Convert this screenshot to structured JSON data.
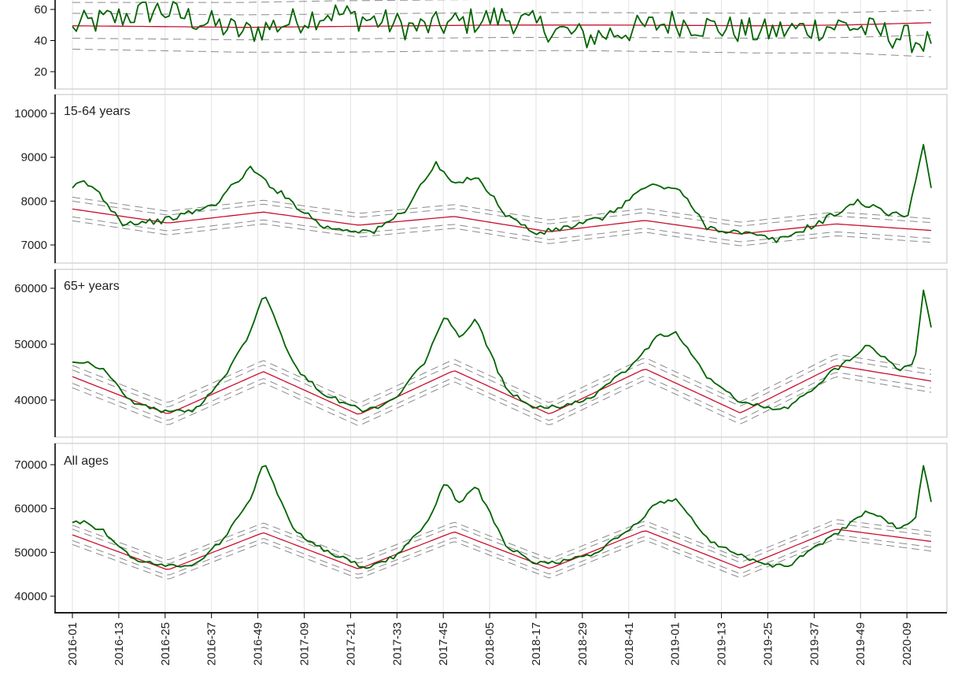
{
  "chart_data": [
    {
      "type": "line",
      "panel_label": "",
      "yticks": [
        20,
        40,
        60
      ],
      "ylim": [
        10,
        70
      ],
      "baseline": [
        49.5,
        49.0,
        48.5,
        49.0,
        49.5,
        50.0,
        50.0,
        49.8,
        49.5,
        50.0,
        51.5
      ],
      "band_inner": [
        8,
        8,
        8,
        8,
        8,
        8,
        8,
        8,
        8,
        8,
        8
      ],
      "band_outer": [
        15,
        15.5,
        16,
        16.5,
        16.5,
        16.5,
        16.5,
        17,
        17.5,
        18,
        22
      ],
      "observed_key": [
        49,
        60,
        45,
        58,
        48,
        55,
        42,
        52,
        45,
        50,
        38
      ],
      "noise_amplitude": 9
    },
    {
      "type": "line",
      "panel_label": "15-64 years",
      "yticks": [
        7000,
        8000,
        9000,
        10000
      ],
      "ylim": [
        6600,
        10400
      ],
      "baseline": [
        7820,
        7500,
        7750,
        7450,
        7650,
        7300,
        7560,
        7250,
        7480,
        7330
      ],
      "band_inner": [
        180,
        180,
        180,
        180,
        180,
        180,
        180,
        180,
        180,
        180
      ],
      "band_outer": [
        270,
        270,
        270,
        270,
        270,
        270,
        270,
        270,
        270,
        270
      ],
      "observed": [
        [
          2016.0,
          8300
        ],
        [
          2016.05,
          8450
        ],
        [
          2016.12,
          8250
        ],
        [
          2016.25,
          7500
        ],
        [
          2016.45,
          7550
        ],
        [
          2016.7,
          7900
        ],
        [
          2016.88,
          8750
        ],
        [
          2017.0,
          8300
        ],
        [
          2017.25,
          7400
        ],
        [
          2017.5,
          7300
        ],
        [
          2017.65,
          7800
        ],
        [
          2017.8,
          8850
        ],
        [
          2017.9,
          8350
        ],
        [
          2018.0,
          8600
        ],
        [
          2018.15,
          7700
        ],
        [
          2018.3,
          7250
        ],
        [
          2018.5,
          7450
        ],
        [
          2018.65,
          7650
        ],
        [
          2018.85,
          8350
        ],
        [
          2019.0,
          8300
        ],
        [
          2019.15,
          7400
        ],
        [
          2019.35,
          7250
        ],
        [
          2019.5,
          7100
        ],
        [
          2019.7,
          7500
        ],
        [
          2019.9,
          8000
        ],
        [
          2020.05,
          7700
        ],
        [
          2020.15,
          7700
        ],
        [
          2020.22,
          9350
        ],
        [
          2020.26,
          8300
        ]
      ],
      "noise_amplitude": 70
    },
    {
      "type": "line",
      "panel_label": "65+ years",
      "yticks": [
        40000,
        50000,
        60000
      ],
      "ylim": [
        33000,
        61500
      ],
      "baseline": [
        44200,
        37500,
        45100,
        37400,
        45300,
        37500,
        45600,
        37700,
        46200,
        43400
      ],
      "band_inner": [
        1200,
        1200,
        1200,
        1200,
        1200,
        1200,
        1200,
        1200,
        1200,
        1200
      ],
      "band_outer": [
        2000,
        2000,
        2000,
        2000,
        2000,
        2000,
        2000,
        2000,
        2000,
        2000
      ],
      "observed": [
        [
          2016.0,
          46800
        ],
        [
          2016.05,
          47000
        ],
        [
          2016.15,
          45500
        ],
        [
          2016.3,
          39500
        ],
        [
          2016.45,
          38000
        ],
        [
          2016.6,
          38000
        ],
        [
          2016.75,
          44000
        ],
        [
          2016.88,
          52000
        ],
        [
          2016.95,
          59500
        ],
        [
          2017.1,
          46000
        ],
        [
          2017.25,
          41000
        ],
        [
          2017.45,
          38000
        ],
        [
          2017.6,
          40000
        ],
        [
          2017.75,
          47000
        ],
        [
          2017.85,
          55000
        ],
        [
          2017.92,
          51000
        ],
        [
          2018.0,
          54500
        ],
        [
          2018.15,
          42000
        ],
        [
          2018.3,
          38500
        ],
        [
          2018.45,
          39000
        ],
        [
          2018.6,
          41000
        ],
        [
          2018.8,
          47000
        ],
        [
          2018.9,
          51500
        ],
        [
          2019.0,
          52000
        ],
        [
          2019.15,
          44000
        ],
        [
          2019.3,
          40000
        ],
        [
          2019.45,
          38500
        ],
        [
          2019.55,
          38500
        ],
        [
          2019.75,
          44500
        ],
        [
          2019.95,
          50000
        ],
        [
          2020.1,
          45500
        ],
        [
          2020.18,
          47000
        ],
        [
          2020.22,
          60000
        ],
        [
          2020.26,
          53000
        ]
      ],
      "noise_amplitude": 400
    },
    {
      "type": "line",
      "panel_label": "All ages",
      "yticks": [
        40000,
        50000,
        60000,
        70000
      ],
      "ylim": [
        35000,
        72000
      ],
      "baseline": [
        54000,
        46000,
        54500,
        46200,
        54700,
        46300,
        55000,
        46400,
        55300,
        52500
      ],
      "band_inner": [
        1300,
        1300,
        1300,
        1300,
        1300,
        1300,
        1300,
        1300,
        1300,
        1300
      ],
      "band_outer": [
        2200,
        2200,
        2200,
        2200,
        2200,
        2200,
        2200,
        2200,
        2200,
        2200
      ],
      "observed": [
        [
          2016.0,
          56800
        ],
        [
          2016.05,
          57000
        ],
        [
          2016.15,
          55000
        ],
        [
          2016.3,
          48500
        ],
        [
          2016.45,
          47000
        ],
        [
          2016.6,
          47000
        ],
        [
          2016.75,
          53000
        ],
        [
          2016.88,
          62000
        ],
        [
          2016.95,
          70500
        ],
        [
          2017.1,
          55000
        ],
        [
          2017.25,
          50500
        ],
        [
          2017.45,
          46500
        ],
        [
          2017.6,
          49000
        ],
        [
          2017.75,
          56000
        ],
        [
          2017.85,
          66000
        ],
        [
          2017.92,
          61000
        ],
        [
          2018.0,
          65500
        ],
        [
          2018.15,
          51500
        ],
        [
          2018.3,
          47500
        ],
        [
          2018.45,
          48000
        ],
        [
          2018.6,
          50000
        ],
        [
          2018.8,
          56500
        ],
        [
          2018.9,
          61500
        ],
        [
          2019.0,
          62000
        ],
        [
          2019.15,
          53000
        ],
        [
          2019.3,
          49500
        ],
        [
          2019.45,
          47000
        ],
        [
          2019.55,
          47000
        ],
        [
          2019.75,
          53000
        ],
        [
          2019.95,
          59500
        ],
        [
          2020.1,
          55500
        ],
        [
          2020.18,
          57000
        ],
        [
          2020.22,
          70500
        ],
        [
          2020.26,
          61500
        ]
      ],
      "noise_amplitude": 450
    }
  ],
  "xticks": [
    "2016-01",
    "2016-13",
    "2016-25",
    "2016-37",
    "2016-49",
    "2017-09",
    "2017-21",
    "2017-33",
    "2017-45",
    "2018-05",
    "2018-17",
    "2018-29",
    "2018-41",
    "2019-01",
    "2019-13",
    "2019-25",
    "2019-37",
    "2019-49",
    "2020-09"
  ],
  "colors": {
    "observed": "#006400",
    "baseline": "#c8102e",
    "band": "#8a8a8a",
    "grid": "#e2e2e2",
    "frame": "#d6d6d6",
    "axis": "#000000"
  }
}
